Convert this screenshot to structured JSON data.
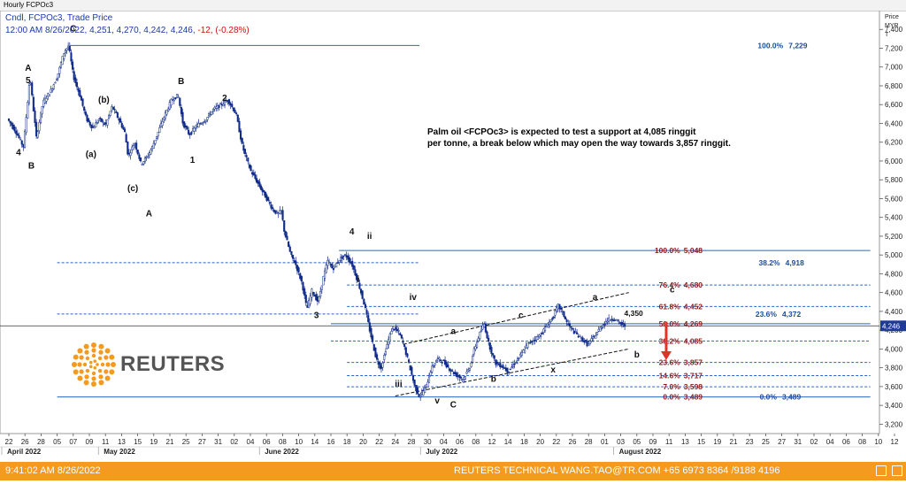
{
  "window_title": "Hourly FCPOc3",
  "header": {
    "line1": "Cndl, FCPOc3, Trade Price",
    "line2": "12:00 AM 8/26/2022, 4,251, 4,270, 4,242, 4,246,",
    "change": "-12, (-0.28%)"
  },
  "annotation_text": [
    "Palm oil <FCPOc3> is expected to test a support at 4,085 ringgit",
    "per tonne, a break below which may open the way towards 3,857 ringgit."
  ],
  "logo_text": "REUTERS",
  "footer": {
    "timestamp": "9:41:02 AM 8/26/2022",
    "contact": "REUTERS TECHNICAL  WANG.TAO@TR.COM  +65 6973 8364 /9188 4196"
  },
  "colors": {
    "candle": "#0f2a8a",
    "fib_line": "#2a64c8",
    "fib_label": "#8b1a1a",
    "fib_label_blue": "#1a4c9c",
    "footer_bg": "#f39a1f",
    "arrow": "#e0312b",
    "price_tag": "#1f3b96"
  },
  "chart_data": {
    "type": "candlestick",
    "interval": "hourly",
    "ylim": [
      3100,
      7600
    ],
    "y_axis_title": "Price\nMYR\nT",
    "y_ticks": [
      3200,
      3400,
      3600,
      3800,
      4000,
      4200,
      4400,
      4600,
      4800,
      5000,
      5200,
      5400,
      5600,
      5800,
      6000,
      6200,
      6400,
      6600,
      6800,
      7000,
      7200,
      7400
    ],
    "y_tick_labels": [
      "3,200",
      "3,400",
      "3,600",
      "3,800",
      "4,000",
      "4,200",
      "4,400",
      "4,600",
      "4,800",
      "5,000",
      "5,200",
      "5,400",
      "5,600",
      "5,800",
      "6,000",
      "6,200",
      "6,400",
      "6,600",
      "6,800",
      "7,000",
      "7,200",
      "7,400"
    ],
    "last_price": 4246,
    "last_price_label": "4,246",
    "x_days": [
      "22",
      "26",
      "28",
      "05",
      "07",
      "09",
      "11",
      "13",
      "15",
      "19",
      "21",
      "25",
      "27",
      "31",
      "02",
      "04",
      "06",
      "08",
      "10",
      "14",
      "16",
      "18",
      "20",
      "22",
      "24",
      "28",
      "30",
      "04",
      "06",
      "08",
      "12",
      "14",
      "18",
      "20",
      "22",
      "26",
      "28",
      "01",
      "03",
      "05",
      "09",
      "11",
      "13",
      "15",
      "19",
      "21",
      "23",
      "25",
      "27",
      "31",
      "02",
      "04",
      "06",
      "08",
      "10",
      "12",
      "14",
      "16",
      "18",
      "20",
      "24",
      "26",
      "28",
      "30",
      "03",
      "05"
    ],
    "months": [
      {
        "label": "April 2022",
        "index": 0
      },
      {
        "label": "May 2022",
        "index": 6
      },
      {
        "label": "June 2022",
        "index": 16
      },
      {
        "label": "July 2022",
        "index": 26
      },
      {
        "label": "August 2022",
        "index": 38
      }
    ],
    "price_path": [
      [
        0,
        6450
      ],
      [
        0.5,
        6320
      ],
      [
        1,
        6150
      ],
      [
        1.4,
        6900
      ],
      [
        1.8,
        6250
      ],
      [
        2.2,
        6620
      ],
      [
        2.7,
        6750
      ],
      [
        3.1,
        6900
      ],
      [
        3.5,
        7150
      ],
      [
        3.8,
        7229
      ],
      [
        4.1,
        6900
      ],
      [
        4.5,
        6700
      ],
      [
        4.9,
        6450
      ],
      [
        5.3,
        6350
      ],
      [
        5.7,
        6450
      ],
      [
        6.1,
        6380
      ],
      [
        6.5,
        6580
      ],
      [
        6.9,
        6450
      ],
      [
        7.3,
        6300
      ],
      [
        7.5,
        6050
      ],
      [
        7.9,
        6200
      ],
      [
        8.3,
        5970
      ],
      [
        8.7,
        6050
      ],
      [
        9.0,
        6150
      ],
      [
        9.3,
        6280
      ],
      [
        9.8,
        6500
      ],
      [
        10.2,
        6650
      ],
      [
        10.6,
        6700
      ],
      [
        10.9,
        6400
      ],
      [
        11.3,
        6280
      ],
      [
        11.8,
        6380
      ],
      [
        12.3,
        6440
      ],
      [
        12.8,
        6550
      ],
      [
        13.3,
        6600
      ],
      [
        13.7,
        6650
      ],
      [
        14.2,
        6500
      ],
      [
        14.6,
        6150
      ],
      [
        15.1,
        5900
      ],
      [
        15.6,
        5750
      ],
      [
        16.1,
        5600
      ],
      [
        16.5,
        5480
      ],
      [
        16.8,
        5430
      ],
      [
        17.0,
        5480
      ],
      [
        17.2,
        5250
      ],
      [
        17.6,
        5000
      ],
      [
        17.9,
        4900
      ],
      [
        18.3,
        4700
      ],
      [
        18.6,
        4420
      ],
      [
        18.9,
        4620
      ],
      [
        19.3,
        4500
      ],
      [
        19.6,
        4750
      ],
      [
        19.9,
        4940
      ],
      [
        20.2,
        4850
      ],
      [
        20.6,
        4950
      ],
      [
        21.0,
        5000
      ],
      [
        21.4,
        4900
      ],
      [
        21.8,
        4700
      ],
      [
        22.2,
        4450
      ],
      [
        22.5,
        4200
      ],
      [
        22.9,
        3900
      ],
      [
        23.2,
        3790
      ],
      [
        23.5,
        4000
      ],
      [
        23.9,
        4230
      ],
      [
        24.3,
        4180
      ],
      [
        24.6,
        4050
      ],
      [
        25.0,
        3800
      ],
      [
        25.3,
        3600
      ],
      [
        25.6,
        3489
      ],
      [
        26.0,
        3600
      ],
      [
        26.3,
        3780
      ],
      [
        26.7,
        3900
      ],
      [
        27.1,
        3860
      ],
      [
        27.5,
        3780
      ],
      [
        27.9,
        3720
      ],
      [
        28.3,
        3680
      ],
      [
        28.7,
        3800
      ],
      [
        29.0,
        4000
      ],
      [
        29.3,
        4150
      ],
      [
        29.6,
        4270
      ],
      [
        29.9,
        4050
      ],
      [
        30.3,
        3850
      ],
      [
        30.7,
        3820
      ],
      [
        31.1,
        3760
      ],
      [
        31.5,
        3850
      ],
      [
        31.9,
        3940
      ],
      [
        32.3,
        4050
      ],
      [
        32.7,
        4100
      ],
      [
        33.1,
        4150
      ],
      [
        33.5,
        4250
      ],
      [
        33.9,
        4340
      ],
      [
        34.2,
        4460
      ],
      [
        34.5,
        4380
      ],
      [
        34.8,
        4260
      ],
      [
        35.2,
        4180
      ],
      [
        35.6,
        4120
      ],
      [
        36.0,
        4050
      ],
      [
        36.4,
        4120
      ],
      [
        36.8,
        4220
      ],
      [
        37.2,
        4300
      ],
      [
        37.6,
        4330
      ],
      [
        38.0,
        4280
      ],
      [
        38.3,
        4246
      ]
    ],
    "horizontal_lines": [
      {
        "y": 7229,
        "x_from": 3.8,
        "x_to": 25.5,
        "style": "solid"
      },
      {
        "y": 5048,
        "x_from": 20.5,
        "x_to": 53.5,
        "style": "solid"
      },
      {
        "y": 4918,
        "x_from": 3.0,
        "x_to": 25.5,
        "style": "dashed"
      },
      {
        "y": 4680,
        "x_from": 21.0,
        "x_to": 53.5,
        "style": "dashed"
      },
      {
        "y": 4452,
        "x_from": 21.0,
        "x_to": 53.5,
        "style": "dashed"
      },
      {
        "y": 4372,
        "x_from": 3.0,
        "x_to": 25.5,
        "style": "dashed"
      },
      {
        "y": 4269,
        "x_from": 20.0,
        "x_to": 53.5,
        "style": "solid"
      },
      {
        "y": 4085,
        "x_from": 20.0,
        "x_to": 53.5,
        "style": "dashed"
      },
      {
        "y": 3857,
        "x_from": 21.0,
        "x_to": 53.5,
        "style": "dashed"
      },
      {
        "y": 3717,
        "x_from": 21.0,
        "x_to": 53.5,
        "style": "dashed"
      },
      {
        "y": 3598,
        "x_from": 21.0,
        "x_to": 53.5,
        "style": "dashed"
      },
      {
        "y": 3489,
        "x_from": 3.0,
        "x_to": 53.5,
        "style": "solid"
      }
    ],
    "channel_lines": [
      {
        "from": [
          24.5,
          4050
        ],
        "to": [
          38.5,
          4600
        ]
      },
      {
        "from": [
          24.0,
          3500
        ],
        "to": [
          38.5,
          4000
        ]
      }
    ],
    "fib_labels_red": [
      {
        "y": 5048,
        "x": 41.8,
        "pct": "100.0%",
        "value": "5,048"
      },
      {
        "y": 4680,
        "x": 41.8,
        "pct": "76.4%",
        "value": "4,680"
      },
      {
        "y": 4452,
        "x": 41.8,
        "pct": "61.8%",
        "value": "4,452"
      },
      {
        "y": 4269,
        "x": 41.8,
        "pct": "50.0%",
        "value": "4,269"
      },
      {
        "y": 4085,
        "x": 41.8,
        "pct": "38.2%",
        "value": "4,085"
      },
      {
        "y": 3857,
        "x": 41.8,
        "pct": "23.6%",
        "value": "3,857"
      },
      {
        "y": 3717,
        "x": 41.8,
        "pct": "14.6%",
        "value": "3,717"
      },
      {
        "y": 3598,
        "x": 41.8,
        "pct": "7.0%",
        "value": "3,598"
      },
      {
        "y": 3489,
        "x": 41.8,
        "pct": "0.0%",
        "value": "3,489"
      }
    ],
    "fib_labels_blue": [
      {
        "y": 7229,
        "x": 48.2,
        "pct": "100.0%",
        "value": "7,229"
      },
      {
        "y": 4918,
        "x": 48.0,
        "pct": "38.2%",
        "value": "4,918"
      },
      {
        "y": 4372,
        "x": 47.8,
        "pct": "23.6%",
        "value": "4,372"
      },
      {
        "y": 3489,
        "x": 47.8,
        "pct": "0.0%",
        "value": "3,489"
      }
    ],
    "wave_labels": [
      {
        "text": "A",
        "x": 1.2,
        "y": 6960
      },
      {
        "text": "5",
        "x": 1.2,
        "y": 6830
      },
      {
        "text": "4",
        "x": 0.6,
        "y": 6060
      },
      {
        "text": "B",
        "x": 1.4,
        "y": 5920
      },
      {
        "text": "C",
        "x": 4.0,
        "y": 7380
      },
      {
        "text": "(b)",
        "x": 5.9,
        "y": 6620
      },
      {
        "text": "(a)",
        "x": 5.1,
        "y": 6040
      },
      {
        "text": "(c)",
        "x": 7.7,
        "y": 5680
      },
      {
        "text": "A",
        "x": 8.7,
        "y": 5410
      },
      {
        "text": "B",
        "x": 10.7,
        "y": 6820
      },
      {
        "text": "2",
        "x": 13.4,
        "y": 6640
      },
      {
        "text": "1",
        "x": 11.4,
        "y": 5980
      },
      {
        "text": "4",
        "x": 21.3,
        "y": 5220
      },
      {
        "text": "ii",
        "x": 22.4,
        "y": 5170
      },
      {
        "text": "i",
        "x": 21.7,
        "y": 4710
      },
      {
        "text": "3",
        "x": 19.1,
        "y": 4330
      },
      {
        "text": "iv",
        "x": 25.1,
        "y": 4520
      },
      {
        "text": "iii",
        "x": 24.2,
        "y": 3600
      },
      {
        "text": "v",
        "x": 26.6,
        "y": 3420
      },
      {
        "text": "C",
        "x": 27.6,
        "y": 3380
      },
      {
        "text": "a",
        "x": 27.6,
        "y": 4160
      },
      {
        "text": "c",
        "x": 31.8,
        "y": 4330
      },
      {
        "text": "b",
        "x": 30.1,
        "y": 3650
      },
      {
        "text": "x",
        "x": 33.8,
        "y": 3750
      },
      {
        "text": "a",
        "x": 36.4,
        "y": 4520
      },
      {
        "text": "b",
        "x": 39.0,
        "y": 3910
      },
      {
        "text": "c",
        "x": 41.2,
        "y": 4600
      },
      {
        "text": "4,350",
        "x": 38.8,
        "y": 4350
      }
    ]
  }
}
